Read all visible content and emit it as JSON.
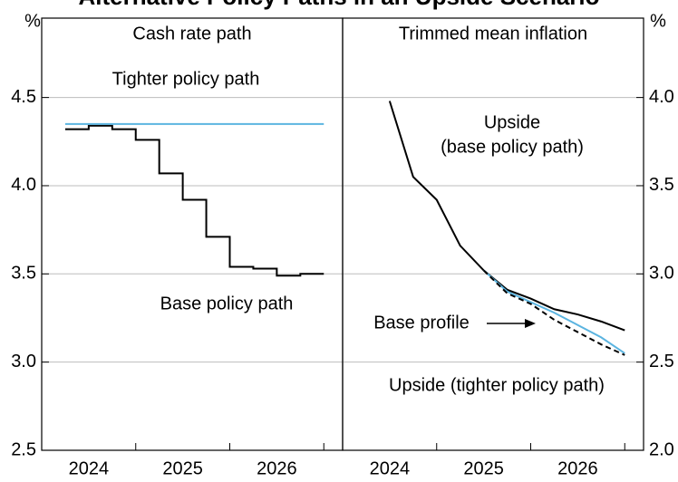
{
  "title": "Alternative Policy Paths in an Upside Scenario",
  "chart_data": [
    {
      "type": "line",
      "title": "Cash rate path",
      "ylabel": "%",
      "axis_side": "left",
      "xlim": [
        2024.0,
        2027.2
      ],
      "ylim": [
        2.5,
        4.95
      ],
      "xticks": [
        {
          "value": 2024.5,
          "label": "2024"
        },
        {
          "value": 2025.5,
          "label": "2025"
        },
        {
          "value": 2026.5,
          "label": "2026"
        }
      ],
      "xminor": [
        2025,
        2026,
        2027
      ],
      "yticks": [
        2.5,
        {
          "value": 3.0,
          "label": "3.0"
        },
        3.5,
        {
          "value": 4.0,
          "label": "4.0"
        },
        4.5
      ],
      "grid": true,
      "series": [
        {
          "name": "Base policy path",
          "color": "#000000",
          "step": true,
          "x": [
            2024.25,
            2024.5,
            2024.75,
            2025.0,
            2025.25,
            2025.5,
            2025.75,
            2026.0,
            2026.25,
            2026.5,
            2026.75,
            2027.0
          ],
          "values": [
            4.32,
            4.34,
            4.32,
            4.26,
            4.07,
            3.92,
            3.71,
            3.54,
            3.53,
            3.49,
            3.5,
            3.5
          ]
        },
        {
          "name": "Tighter policy path",
          "color": "#5bb4e0",
          "x": [
            2024.25,
            2027.0
          ],
          "values": [
            4.35,
            4.35
          ]
        }
      ],
      "annotations": []
    },
    {
      "type": "line",
      "title": "Trimmed mean inflation",
      "ylabel": "%",
      "axis_side": "right",
      "xlim": [
        2024.0,
        2027.2
      ],
      "ylim": [
        2.0,
        4.45
      ],
      "xticks": [
        {
          "value": 2024.5,
          "label": "2024"
        },
        {
          "value": 2025.5,
          "label": "2025"
        },
        {
          "value": 2026.5,
          "label": "2026"
        }
      ],
      "xminor": [
        2025,
        2026,
        2027
      ],
      "yticks": [
        {
          "value": 2.0,
          "label": "2.0"
        },
        2.5,
        {
          "value": 3.0,
          "label": "3.0"
        },
        3.5,
        {
          "value": 4.0,
          "label": "4.0"
        }
      ],
      "grid": true,
      "series": [
        {
          "color": "#000000",
          "x": [
            2024.5,
            2024.75,
            2025.0,
            2025.25,
            2025.5,
            2025.75,
            2026.0,
            2026.25,
            2026.5,
            2026.75,
            2027.0
          ],
          "values": [
            3.98,
            3.55,
            3.42,
            3.16,
            3.02,
            2.91,
            2.86,
            2.8,
            2.77,
            2.73,
            2.68
          ]
        },
        {
          "name": "Upside (tighter policy path)",
          "color": "#5bb4e0",
          "x": [
            2025.5,
            2025.75,
            2026.0,
            2026.25,
            2026.5,
            2026.75,
            2027.0
          ],
          "values": [
            3.02,
            2.9,
            2.84,
            2.78,
            2.71,
            2.64,
            2.55
          ]
        },
        {
          "name": "Base profile",
          "color": "#000000",
          "dashed": true,
          "x": [
            2025.5,
            2025.75,
            2026.0,
            2026.25,
            2026.5,
            2026.75,
            2027.0
          ],
          "values": [
            3.02,
            2.89,
            2.83,
            2.74,
            2.67,
            2.6,
            2.54
          ]
        }
      ],
      "annotations": [
        "Upside",
        "(base policy path)"
      ]
    }
  ]
}
